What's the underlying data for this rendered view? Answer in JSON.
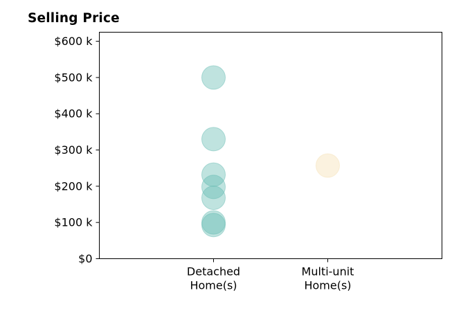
{
  "chart_data": {
    "type": "scatter",
    "title": "Selling Price",
    "xlabel": "",
    "ylabel": "",
    "categories": [
      "Detached\nHome(s)",
      "Multi-unit\nHome(s)"
    ],
    "xlim": [
      -1,
      2
    ],
    "ylim": [
      0,
      625000
    ],
    "y_ticks": [
      0,
      100000,
      200000,
      300000,
      400000,
      500000,
      600000
    ],
    "y_tick_labels": [
      "$0",
      "$100 k",
      "$200 k",
      "$300 k",
      "$400 k",
      "$500 k",
      "$600 k"
    ],
    "grid": false,
    "series": [
      {
        "category_index": 0,
        "color": "#5fb8b0",
        "values": [
          500000,
          330000,
          232000,
          198000,
          168000,
          100000,
          93000
        ]
      },
      {
        "category_index": 1,
        "color": "#f5deb0",
        "values": [
          257000
        ]
      }
    ]
  }
}
